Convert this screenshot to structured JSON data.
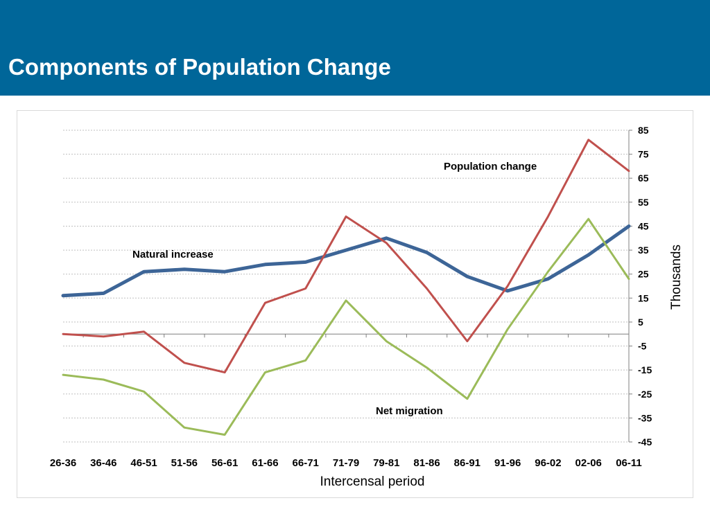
{
  "header": {
    "title": "Components of Population Change",
    "background": "#006699"
  },
  "chart_data": {
    "type": "line",
    "title": "",
    "xlabel": "Intercensal period",
    "ylabel": "Thousands",
    "y_axis_side": "right",
    "ylim": [
      -45,
      85
    ],
    "yticks": [
      85,
      75,
      65,
      55,
      45,
      35,
      25,
      15,
      5,
      -5,
      -15,
      -25,
      -35,
      -45
    ],
    "grid": "horizontal dotted",
    "categories": [
      "26-36",
      "36-46",
      "46-51",
      "51-56",
      "56-61",
      "61-66",
      "66-71",
      "71-79",
      "79-81",
      "81-86",
      "86-91",
      "91-96",
      "96-02",
      "02-06",
      "06-11"
    ],
    "series": [
      {
        "name": "Natural increase",
        "color": "#3d6597",
        "values": [
          16,
          17,
          26,
          27,
          26,
          29,
          30,
          35,
          40,
          34,
          24,
          18,
          23,
          33,
          45
        ]
      },
      {
        "name": "Population change",
        "color": "#c0504d",
        "values": [
          0,
          -1,
          1,
          -12,
          -16,
          13,
          19,
          49,
          38,
          19,
          -3,
          20,
          49,
          81,
          68
        ]
      },
      {
        "name": "Net migration",
        "color": "#9bbb59",
        "values": [
          -17,
          -19,
          -24,
          -39,
          -42,
          -16,
          -11,
          14,
          -3,
          -14,
          -27,
          2,
          26,
          48,
          23
        ]
      }
    ]
  }
}
